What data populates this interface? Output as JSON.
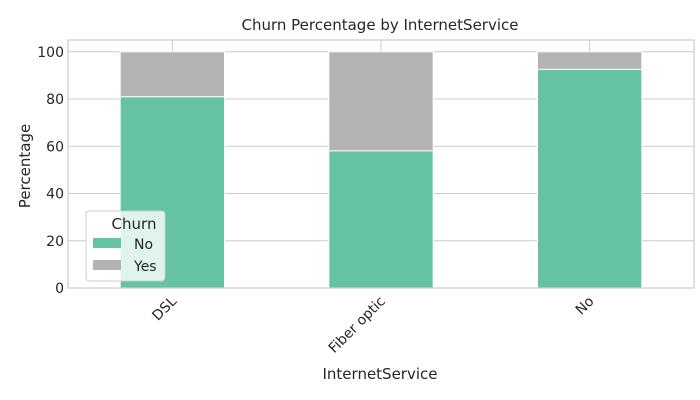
{
  "chart_data": {
    "type": "bar",
    "stacked": true,
    "title": "Churn Percentage by InternetService",
    "xlabel": "InternetService",
    "ylabel": "Percentage",
    "categories": [
      "DSL",
      "Fiber optic",
      "No"
    ],
    "series": [
      {
        "name": "No",
        "values": [
          81.0,
          58.1,
          92.6
        ],
        "color": "#66c2a5"
      },
      {
        "name": "Yes",
        "values": [
          19.0,
          41.9,
          7.4
        ],
        "color": "#b3b3b3"
      }
    ],
    "ylim": [
      0,
      105
    ],
    "yticks": [
      0,
      20,
      40,
      60,
      80,
      100
    ],
    "grid": true,
    "legend": {
      "title": "Churn",
      "position": "lower-left"
    }
  }
}
